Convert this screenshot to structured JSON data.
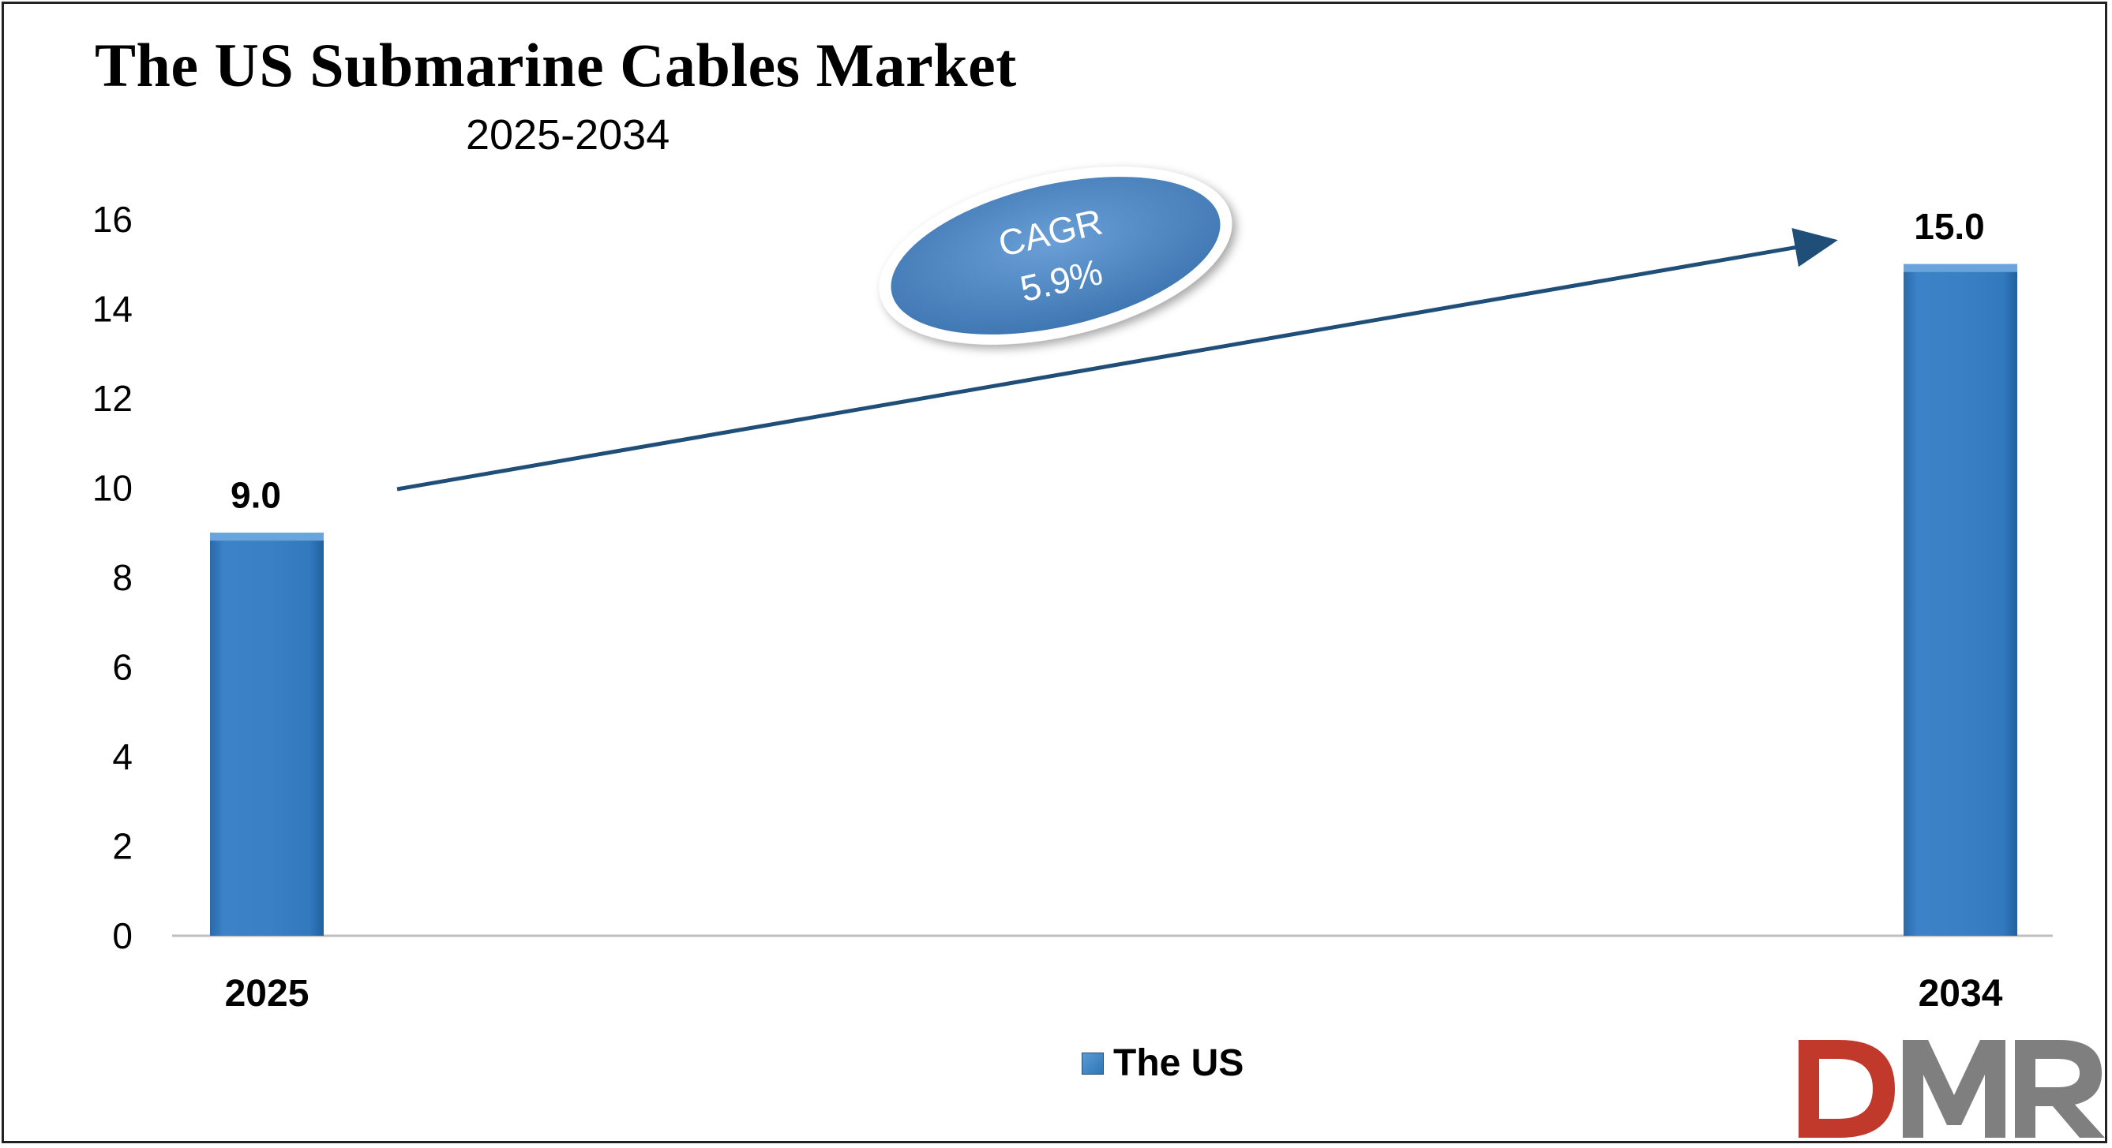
{
  "chart_data": {
    "type": "bar",
    "title": "The US Submarine Cables Market",
    "subtitle": "2025-2034",
    "categories": [
      "2025",
      "2034"
    ],
    "series": [
      {
        "name": "The US",
        "values": [
          9.0,
          15.0
        ],
        "color": "#2e75b6"
      }
    ],
    "data_labels": [
      "9.0",
      "15.0"
    ],
    "y_ticks": [
      "0",
      "2",
      "4",
      "6",
      "8",
      "10",
      "12",
      "14",
      "16"
    ],
    "ylim": [
      0,
      16
    ],
    "xlabel": "",
    "ylabel": "",
    "grid": false,
    "legend_position": "bottom",
    "annotation": {
      "line1": "CAGR",
      "line2": "5.9%",
      "color": "#4f86c6"
    },
    "arrow_color": "#1f4e79"
  },
  "logo": {
    "text": "DMR",
    "color_d": "#c0392b",
    "color_m": "#7f7f7f",
    "color_r": "#7f7f7f"
  }
}
